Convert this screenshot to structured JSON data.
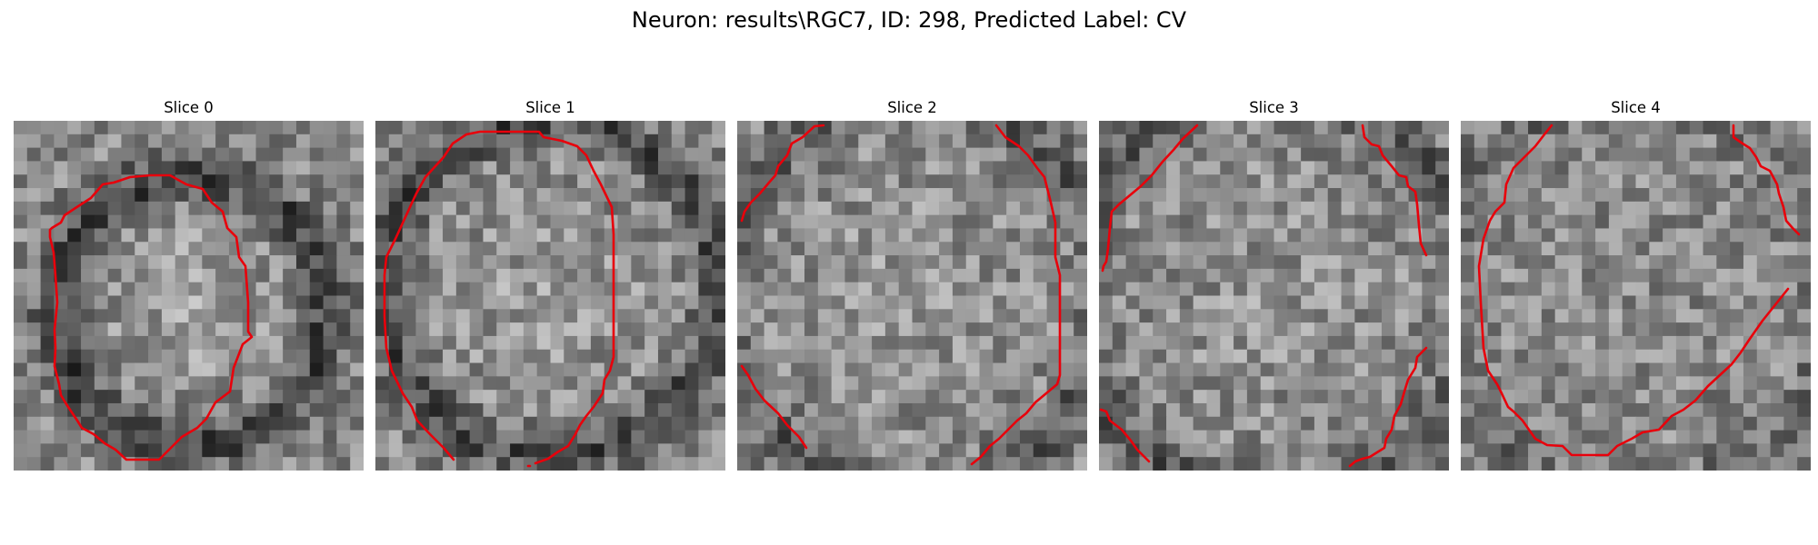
{
  "figure": {
    "title": "Neuron: results\\RGC7, ID: 298, Predicted Label: CV"
  },
  "slices": [
    {
      "label": "Slice 0"
    },
    {
      "label": "Slice 1"
    },
    {
      "label": "Slice 2"
    },
    {
      "label": "Slice 3"
    },
    {
      "label": "Slice 4"
    }
  ],
  "style": {
    "contour_color": "#e8000b"
  }
}
